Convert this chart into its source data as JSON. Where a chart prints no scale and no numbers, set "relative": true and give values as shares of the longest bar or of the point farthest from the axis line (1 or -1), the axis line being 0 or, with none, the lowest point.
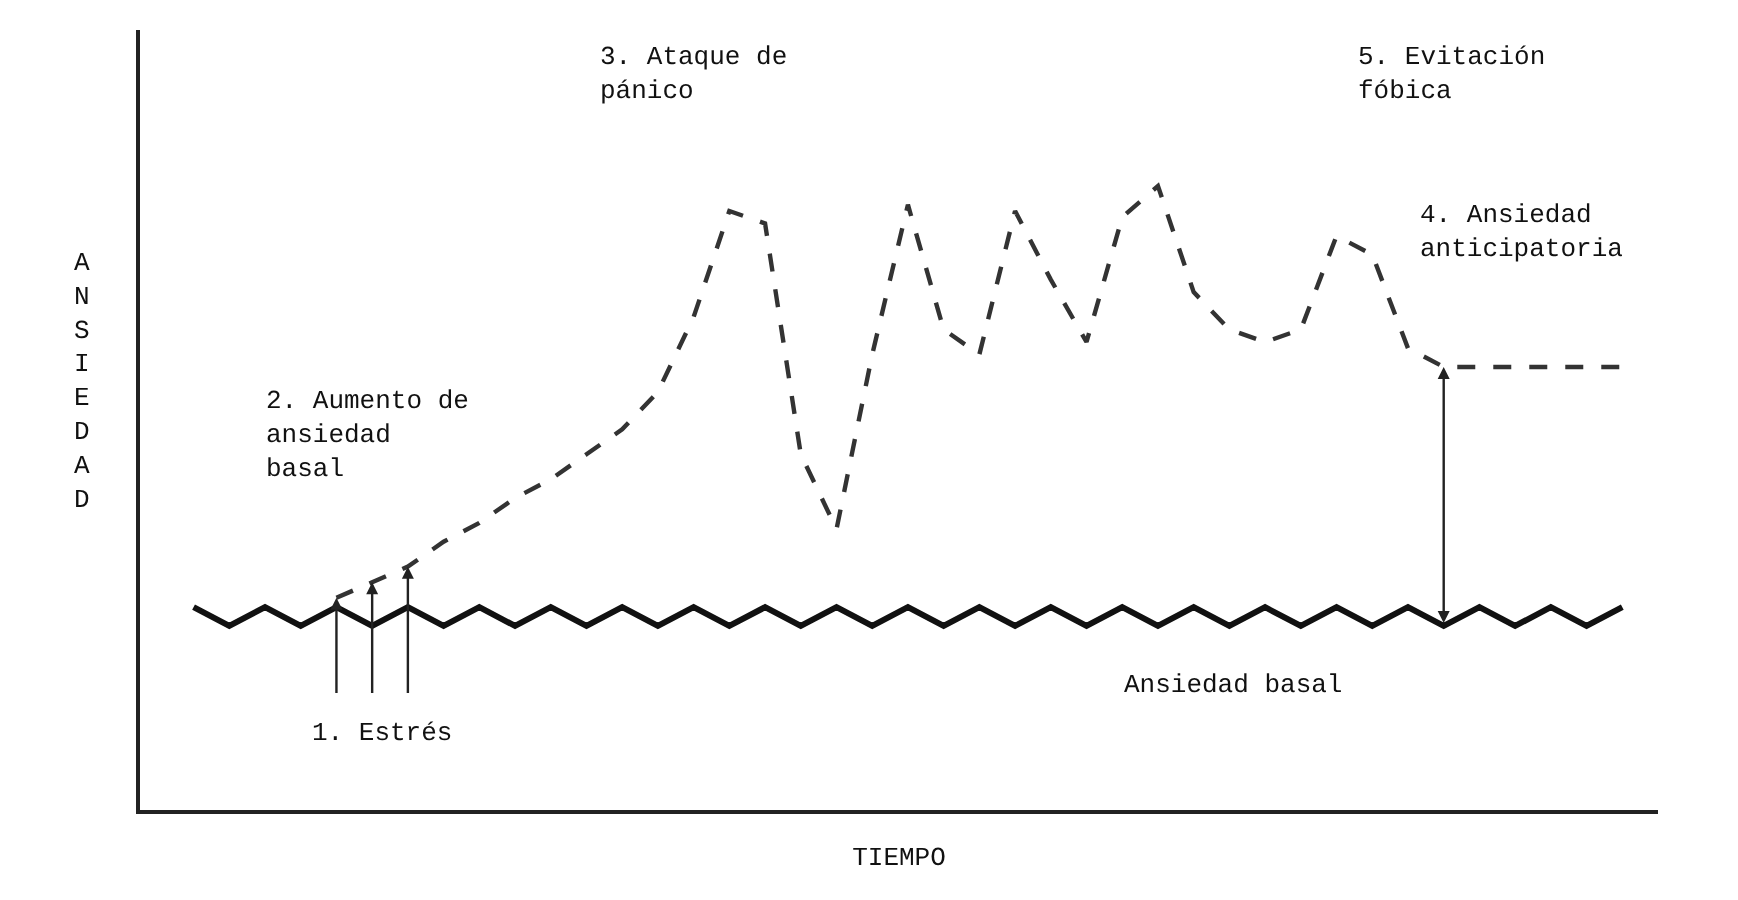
{
  "chart_data": {
    "type": "line",
    "relative": true,
    "xlabel": "TIEMPO",
    "ylabel": "ANSIEDAD",
    "categories": [
      null,
      null,
      null,
      null,
      null,
      null,
      null,
      null,
      null,
      null,
      null,
      null,
      null,
      null,
      null,
      null,
      null,
      null,
      null,
      null,
      null,
      null,
      null,
      null,
      null,
      null,
      null,
      null,
      null,
      null,
      null,
      null,
      null,
      null,
      null,
      null,
      null,
      null,
      null,
      null,
      null
    ],
    "series": [
      {
        "color": "#111111",
        "line_style": "solid",
        "values": [
          0.325,
          0.295,
          0.325,
          0.295,
          0.325,
          0.295,
          0.325,
          0.295,
          0.325,
          0.295,
          0.325,
          0.295,
          0.325,
          0.295,
          0.325,
          0.295,
          0.325,
          0.295,
          0.325,
          0.295,
          0.325,
          0.295,
          0.325,
          0.295,
          0.325,
          0.295,
          0.325,
          0.295,
          0.325,
          0.295,
          0.325,
          0.295,
          0.325,
          0.295,
          0.325,
          0.295,
          0.325,
          0.295,
          0.325,
          0.295,
          0.325
        ]
      },
      {
        "color": "#333333",
        "line_style": "dashed",
        "values": [
          null,
          null,
          null,
          null,
          0.34,
          0.365,
          0.39,
          0.43,
          0.46,
          0.5,
          0.53,
          0.57,
          0.61,
          0.67,
          0.79,
          0.96,
          0.94,
          0.57,
          0.45,
          0.73,
          0.97,
          0.77,
          0.73,
          0.96,
          0.85,
          0.75,
          0.95,
          1.0,
          0.83,
          0.77,
          0.75,
          0.77,
          0.92,
          0.89,
          0.74,
          0.71,
          0.71,
          0.71,
          0.71,
          0.71,
          0.71
        ]
      }
    ],
    "annotations": [
      "1. Estrés",
      "2. Aumento de\nansiedad\nbasal",
      "3. Ataque de\npánico",
      "4. Ansiedad\nanticipatoria",
      "5. Evitación\nfóbica",
      "Ansiedad basal"
    ]
  }
}
